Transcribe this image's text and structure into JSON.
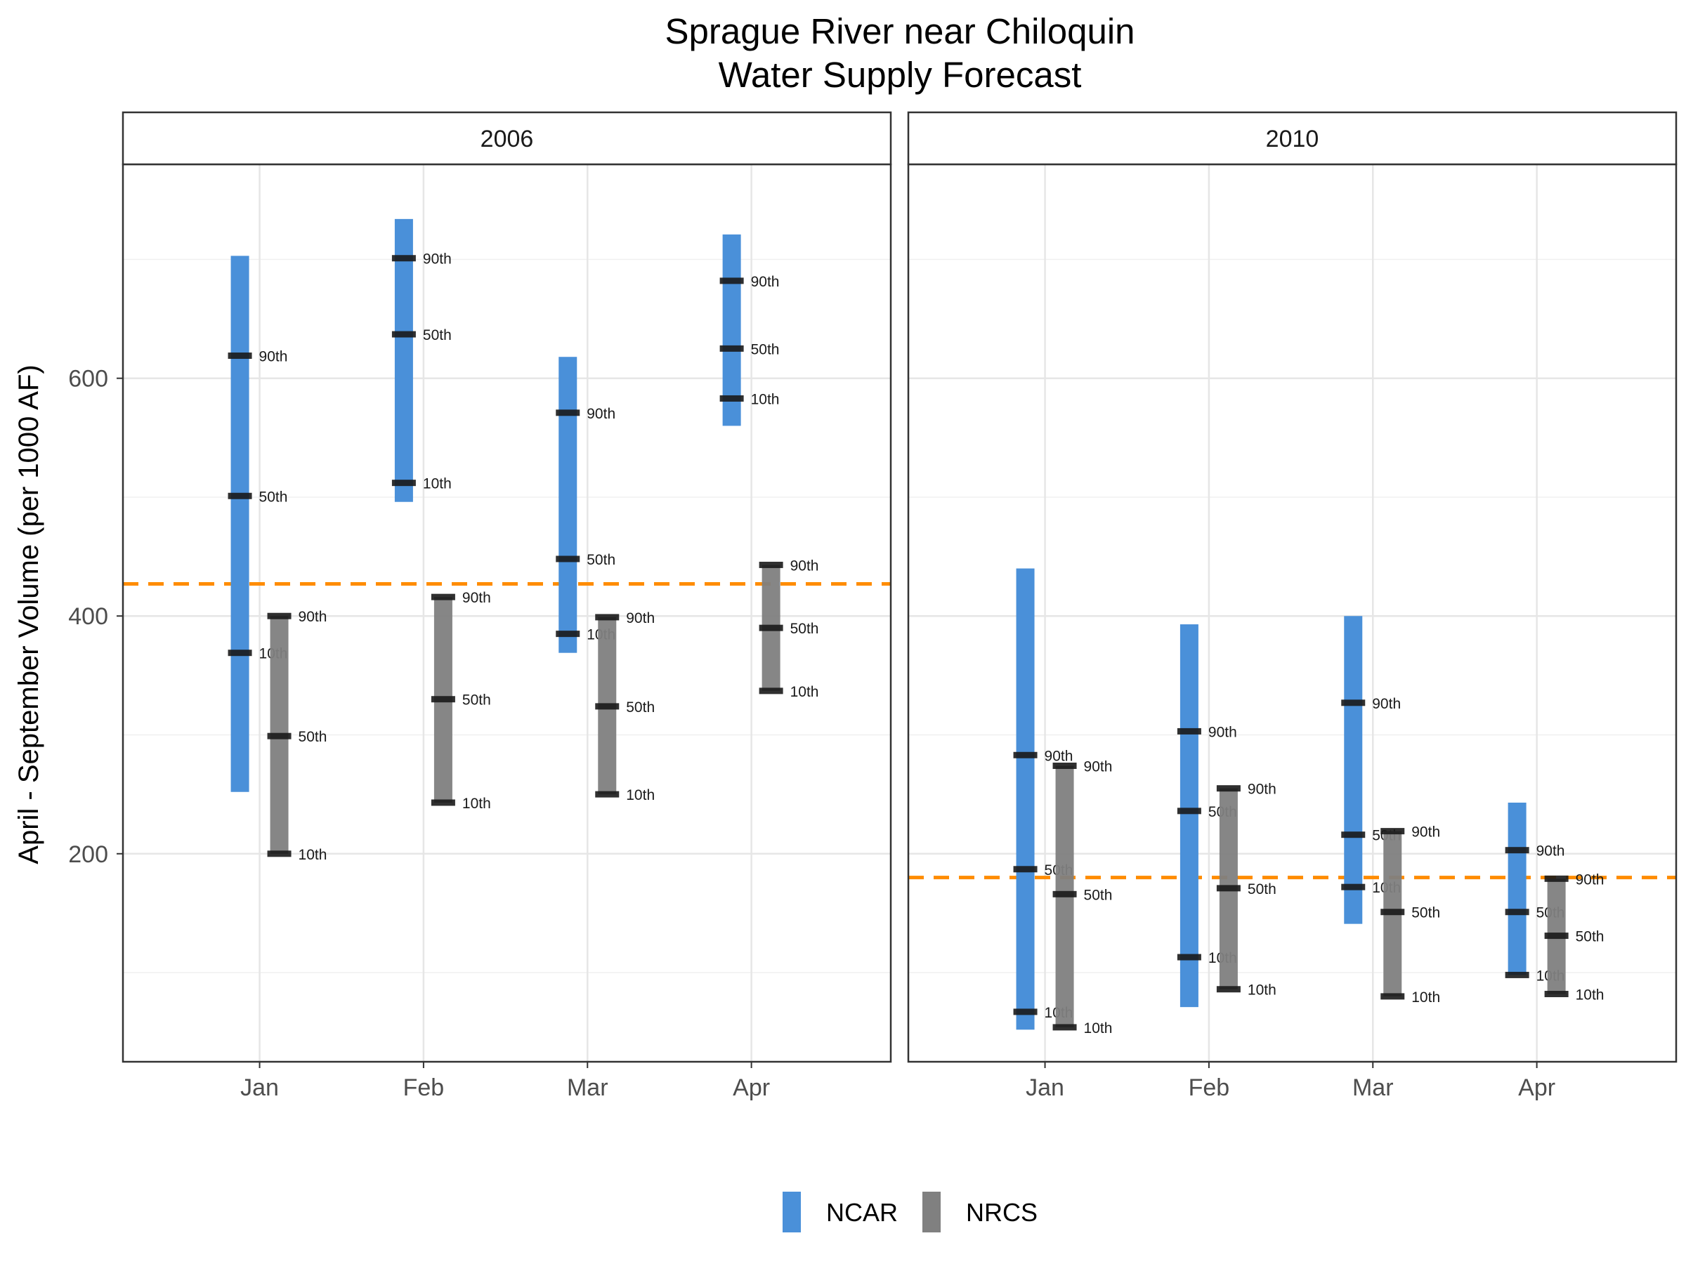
{
  "colors": {
    "NCAR": "#4a90d9",
    "NRCS": "#808080",
    "reference_line": "#ff8c00",
    "marker": "#1a1a1a"
  },
  "chart_data": {
    "type": "range-bar",
    "title_line1": "Sprague River near Chiloquin",
    "title_line2": "Water Supply Forecast",
    "xlabel": "",
    "ylabel": "April - September Volume (per 1000 AF)",
    "categories": [
      "Jan",
      "Feb",
      "Mar",
      "Apr"
    ],
    "ylim": [
      25,
      780
    ],
    "yticks": [
      200,
      400,
      600
    ],
    "grid": true,
    "legend": {
      "position": "bottom",
      "entries": [
        "NCAR",
        "NRCS"
      ]
    },
    "percentile_labels": [
      "10th",
      "50th",
      "90th"
    ],
    "panels": [
      {
        "title": "2006",
        "reference_line": 427,
        "series": [
          {
            "name": "NCAR",
            "ranges": [
              {
                "month": "Jan",
                "low": 252,
                "high": 703,
                "p10": 369,
                "p50": 501,
                "p90": 619
              },
              {
                "month": "Feb",
                "low": 496,
                "high": 734,
                "p10": 512,
                "p50": 637,
                "p90": 701
              },
              {
                "month": "Mar",
                "low": 369,
                "high": 618,
                "p10": 385,
                "p50": 448,
                "p90": 571
              },
              {
                "month": "Apr",
                "low": 560,
                "high": 721,
                "p10": 583,
                "p50": 625,
                "p90": 682
              }
            ]
          },
          {
            "name": "NRCS",
            "ranges": [
              {
                "month": "Jan",
                "low": 200,
                "high": 400,
                "p10": 200,
                "p50": 299,
                "p90": 400
              },
              {
                "month": "Feb",
                "low": 243,
                "high": 416,
                "p10": 243,
                "p50": 330,
                "p90": 416
              },
              {
                "month": "Mar",
                "low": 250,
                "high": 399,
                "p10": 250,
                "p50": 324,
                "p90": 399
              },
              {
                "month": "Apr",
                "low": 337,
                "high": 443,
                "p10": 337,
                "p50": 390,
                "p90": 443
              }
            ]
          }
        ]
      },
      {
        "title": "2010",
        "reference_line": 180,
        "series": [
          {
            "name": "NCAR",
            "ranges": [
              {
                "month": "Jan",
                "low": 52,
                "high": 440,
                "p10": 67,
                "p50": 187,
                "p90": 283
              },
              {
                "month": "Feb",
                "low": 71,
                "high": 393,
                "p10": 113,
                "p50": 236,
                "p90": 303
              },
              {
                "month": "Mar",
                "low": 141,
                "high": 400,
                "p10": 172,
                "p50": 216,
                "p90": 327
              },
              {
                "month": "Apr",
                "low": 98,
                "high": 243,
                "p10": 98,
                "p50": 151,
                "p90": 203
              }
            ]
          },
          {
            "name": "NRCS",
            "ranges": [
              {
                "month": "Jan",
                "low": 54,
                "high": 274,
                "p10": 54,
                "p50": 166,
                "p90": 274
              },
              {
                "month": "Feb",
                "low": 86,
                "high": 255,
                "p10": 86,
                "p50": 171,
                "p90": 255
              },
              {
                "month": "Mar",
                "low": 80,
                "high": 219,
                "p10": 80,
                "p50": 151,
                "p90": 219
              },
              {
                "month": "Apr",
                "low": 82,
                "high": 179,
                "p10": 82,
                "p50": 131,
                "p90": 179
              }
            ]
          }
        ]
      }
    ]
  }
}
